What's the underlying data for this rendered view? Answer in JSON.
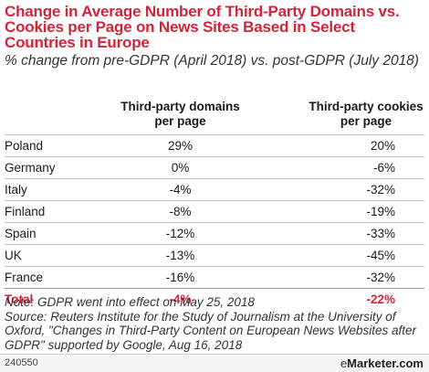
{
  "chart_data": {
    "type": "table",
    "title": "Change in Average Number of Third-Party Domains vs. Cookies per Page on News Sites Based in Select Countries in Europe",
    "subtitle": "% change from pre-GDPR (April 2018) vs. post-GDPR (July 2018)",
    "columns": [
      "",
      "Third-party domains per page",
      "Third-party cookies per page"
    ],
    "rows": [
      {
        "country": "Poland",
        "domains": "29%",
        "cookies": "20%"
      },
      {
        "country": "Germany",
        "domains": "0%",
        "cookies": "-6%"
      },
      {
        "country": "Italy",
        "domains": "-4%",
        "cookies": "-32%"
      },
      {
        "country": "Finland",
        "domains": "-8%",
        "cookies": "-19%"
      },
      {
        "country": "Spain",
        "domains": "-12%",
        "cookies": "-33%"
      },
      {
        "country": "UK",
        "domains": "-13%",
        "cookies": "-45%"
      },
      {
        "country": "France",
        "domains": "-16%",
        "cookies": "-32%"
      }
    ],
    "total": {
      "country": "Total",
      "domains": "-4%",
      "cookies": "-22%"
    },
    "note": "Note: GDPR went into effect on May 25, 2018",
    "source": "Source: Reuters Institute for the Study of Journalism at the University of Oxford, \"Changes in Third-Party Content on European News Websites after GDPR\" supported by Google, Aug 16, 2018"
  },
  "footer": {
    "chart_id": "240550",
    "brand_e": "e",
    "brand_rest": "Marketer.com"
  },
  "colors": {
    "accent": "#d1253b"
  }
}
